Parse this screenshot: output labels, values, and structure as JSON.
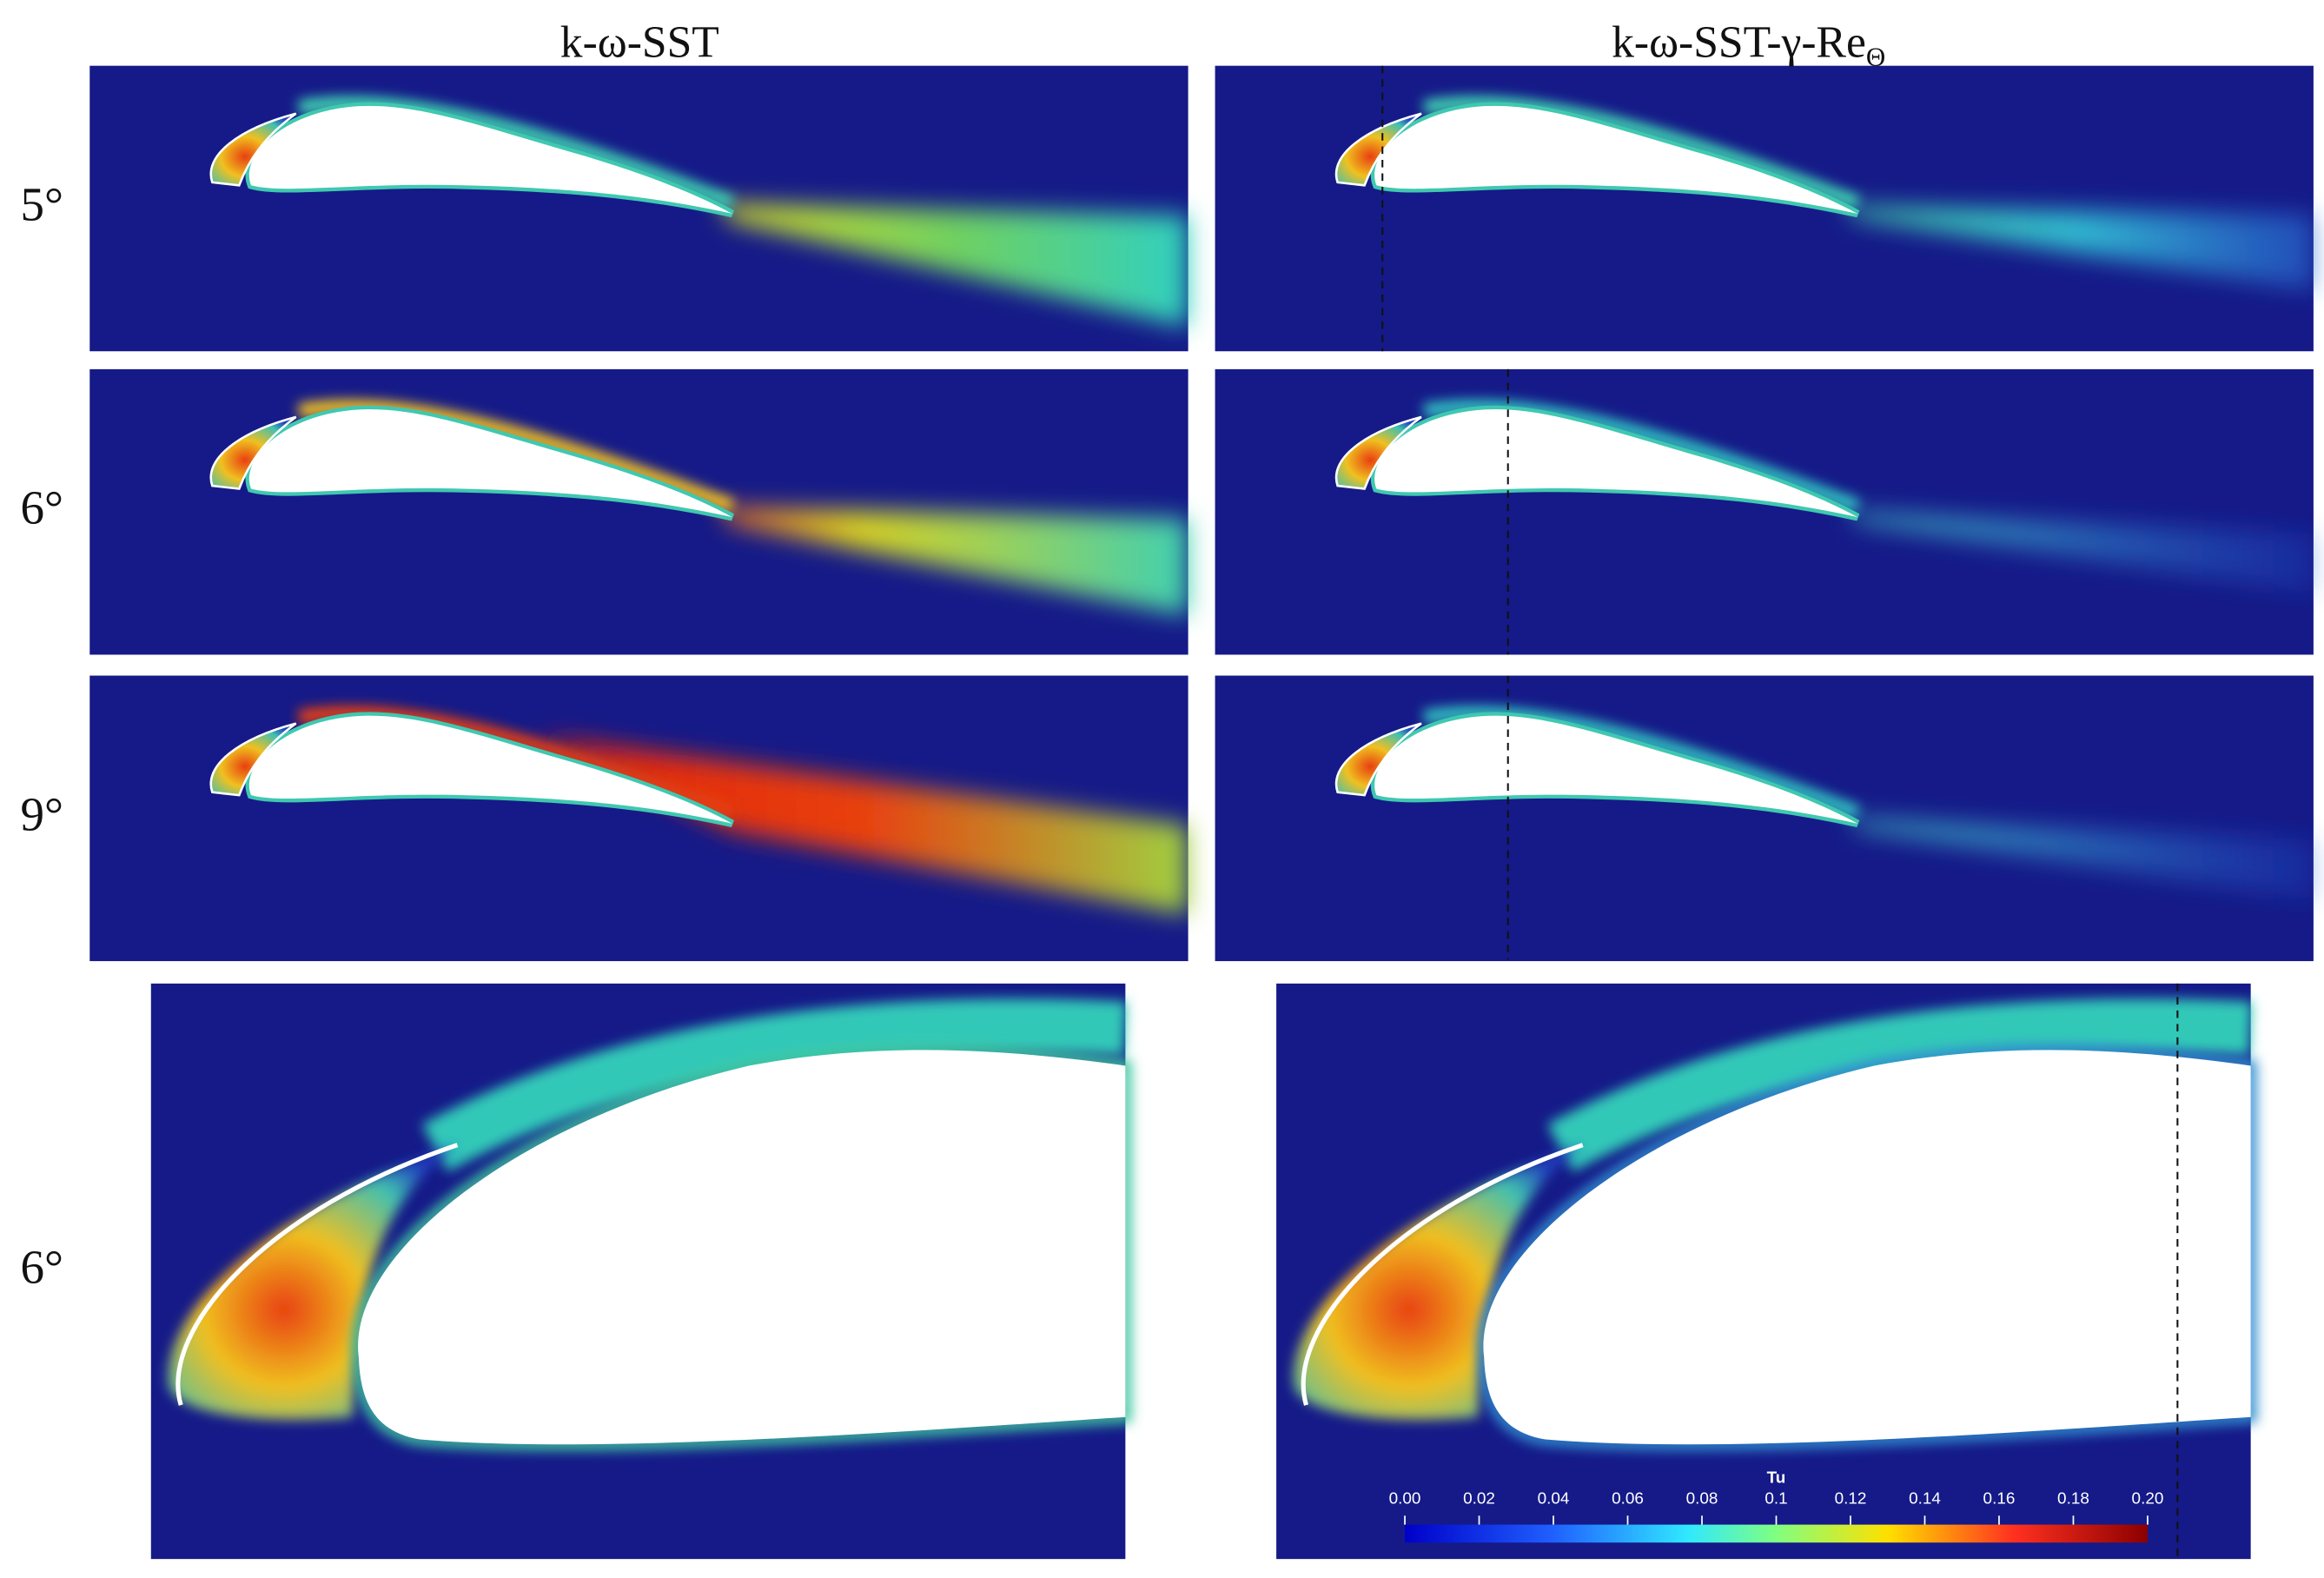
{
  "columns": [
    {
      "title": "k-ω-SST"
    },
    {
      "title": "k-ω-SST-γ-Re",
      "subscript": "Θ"
    }
  ],
  "rows": [
    "5°",
    "6°",
    "9°",
    "6°"
  ],
  "colorbar": {
    "title": "Tu",
    "ticks": [
      {
        "value": 0,
        "label": "0.00"
      },
      {
        "value": 0.02,
        "label": "0.02"
      },
      {
        "value": 0.04,
        "label": "0.04"
      },
      {
        "value": 0.06,
        "label": "0.06"
      },
      {
        "value": 0.08,
        "label": "0.08"
      },
      0.1,
      {
        "value": 0.12,
        "label": "0.12"
      },
      {
        "value": 0.14,
        "label": "0.14"
      },
      {
        "value": 0.16,
        "label": "0.16"
      },
      {
        "value": 0.18,
        "label": "0.18"
      },
      {
        "value": 0.2,
        "label": "0.20"
      }
    ]
  }
}
